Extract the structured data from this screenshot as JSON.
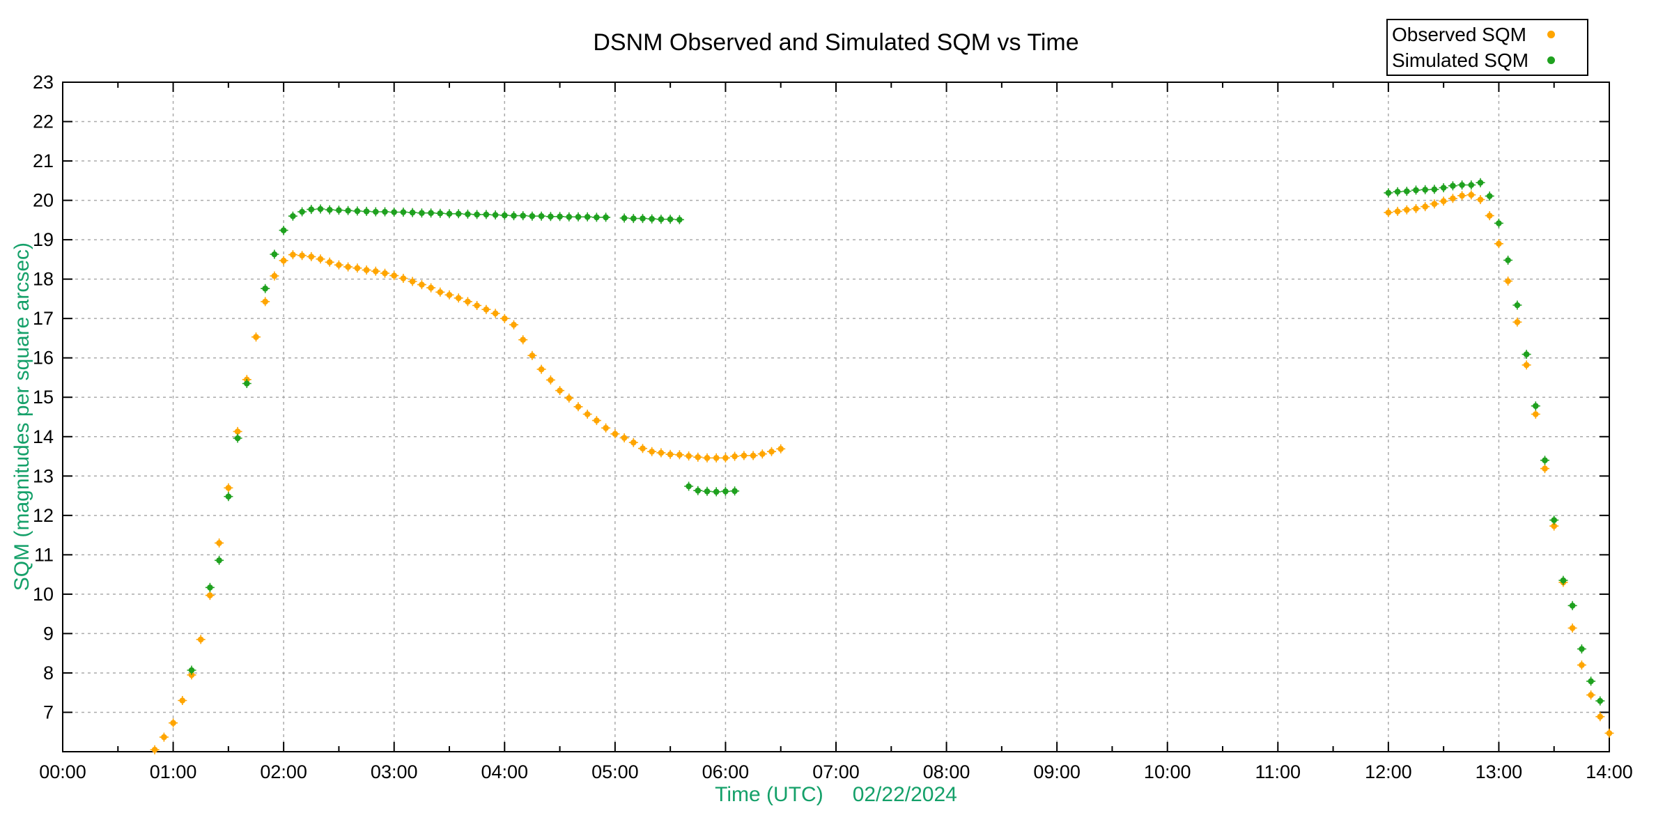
{
  "title": "DSNM Observed and Simulated SQM vs Time",
  "axes": {
    "x_label_time": "Time (UTC)",
    "x_label_date": "02/22/2024",
    "y_label": "SQM (magnitudes per square arcsec)",
    "x_ticks": [
      "00:00",
      "01:00",
      "02:00",
      "03:00",
      "04:00",
      "05:00",
      "06:00",
      "07:00",
      "08:00",
      "09:00",
      "10:00",
      "11:00",
      "12:00",
      "13:00",
      "14:00"
    ],
    "y_ticks": [
      7,
      8,
      9,
      10,
      11,
      12,
      13,
      14,
      15,
      16,
      17,
      18,
      19,
      20,
      21,
      22,
      23
    ]
  },
  "legend": {
    "items": [
      {
        "label": "Observed SQM",
        "color": "#FFA500"
      },
      {
        "label": "Simulated SQM",
        "color": "#1FA11F"
      }
    ]
  },
  "colors": {
    "observed": "#FFA500",
    "simulated": "#1FA11F",
    "axis_label_text": "#14A069",
    "grid": "#AAAAAA",
    "spine": "#000000",
    "tick_text": "#000000",
    "background": "#FFFFFF"
  },
  "chart_data": {
    "type": "scatter",
    "title": "DSNM Observed and Simulated SQM vs Time",
    "xlabel": "Time (UTC)   02/22/2024",
    "ylabel": "SQM (magnitudes per square arcsec)",
    "x_hours_range": [
      0,
      14
    ],
    "ylim": [
      6,
      23
    ],
    "grid": true,
    "legend_position": "top-right",
    "series": [
      {
        "name": "Observed SQM",
        "color": "#FFA500",
        "points": [
          [
            "00:50",
            6.05
          ],
          [
            "00:55",
            6.37
          ],
          [
            "01:00",
            6.73
          ],
          [
            "01:05",
            7.3
          ],
          [
            "01:10",
            7.95
          ],
          [
            "01:15",
            8.85
          ],
          [
            "01:20",
            9.97
          ],
          [
            "01:25",
            11.3
          ],
          [
            "01:30",
            12.7
          ],
          [
            "01:35",
            14.13
          ],
          [
            "01:40",
            15.45
          ],
          [
            "01:45",
            16.53
          ],
          [
            "01:50",
            17.43
          ],
          [
            "01:55",
            18.08
          ],
          [
            "02:00",
            18.47
          ],
          [
            "02:05",
            18.62
          ],
          [
            "02:10",
            18.6
          ],
          [
            "02:15",
            18.57
          ],
          [
            "02:20",
            18.51
          ],
          [
            "02:25",
            18.43
          ],
          [
            "02:30",
            18.36
          ],
          [
            "02:35",
            18.31
          ],
          [
            "02:40",
            18.28
          ],
          [
            "02:45",
            18.23
          ],
          [
            "02:50",
            18.2
          ],
          [
            "02:55",
            18.15
          ],
          [
            "03:00",
            18.09
          ],
          [
            "03:05",
            18.02
          ],
          [
            "03:10",
            17.94
          ],
          [
            "03:15",
            17.86
          ],
          [
            "03:20",
            17.78
          ],
          [
            "03:25",
            17.67
          ],
          [
            "03:30",
            17.6
          ],
          [
            "03:35",
            17.52
          ],
          [
            "03:40",
            17.43
          ],
          [
            "03:45",
            17.33
          ],
          [
            "03:50",
            17.23
          ],
          [
            "03:55",
            17.13
          ],
          [
            "04:00",
            17.0
          ],
          [
            "04:05",
            16.84
          ],
          [
            "04:10",
            16.46
          ],
          [
            "04:15",
            16.06
          ],
          [
            "04:20",
            15.71
          ],
          [
            "04:25",
            15.44
          ],
          [
            "04:30",
            15.17
          ],
          [
            "04:35",
            14.98
          ],
          [
            "04:40",
            14.76
          ],
          [
            "04:45",
            14.57
          ],
          [
            "04:50",
            14.41
          ],
          [
            "04:55",
            14.22
          ],
          [
            "05:00",
            14.07
          ],
          [
            "05:05",
            13.97
          ],
          [
            "05:10",
            13.85
          ],
          [
            "05:15",
            13.7
          ],
          [
            "05:20",
            13.62
          ],
          [
            "05:25",
            13.59
          ],
          [
            "05:30",
            13.55
          ],
          [
            "05:35",
            13.54
          ],
          [
            "05:40",
            13.51
          ],
          [
            "05:45",
            13.48
          ],
          [
            "05:50",
            13.46
          ],
          [
            "05:55",
            13.46
          ],
          [
            "06:00",
            13.46
          ],
          [
            "06:05",
            13.5
          ],
          [
            "06:10",
            13.52
          ],
          [
            "06:15",
            13.52
          ],
          [
            "06:20",
            13.56
          ],
          [
            "06:25",
            13.62
          ],
          [
            "06:30",
            13.69
          ],
          [
            "12:00",
            19.69
          ],
          [
            "12:05",
            19.72
          ],
          [
            "12:10",
            19.76
          ],
          [
            "12:15",
            19.79
          ],
          [
            "12:20",
            19.84
          ],
          [
            "12:25",
            19.91
          ],
          [
            "12:30",
            19.98
          ],
          [
            "12:35",
            20.05
          ],
          [
            "12:40",
            20.12
          ],
          [
            "12:45",
            20.14
          ],
          [
            "12:50",
            20.02
          ],
          [
            "12:55",
            19.61
          ],
          [
            "13:00",
            18.9
          ],
          [
            "13:05",
            17.95
          ],
          [
            "13:10",
            16.91
          ],
          [
            "13:15",
            15.82
          ],
          [
            "13:20",
            14.57
          ],
          [
            "13:25",
            13.19
          ],
          [
            "13:30",
            11.73
          ],
          [
            "13:35",
            10.3
          ],
          [
            "13:40",
            9.14
          ],
          [
            "13:45",
            8.2
          ],
          [
            "13:50",
            7.44
          ],
          [
            "13:55",
            6.89
          ],
          [
            "14:00",
            6.47
          ]
        ]
      },
      {
        "name": "Simulated SQM",
        "color": "#1FA11F",
        "points": [
          [
            "01:10",
            8.07
          ],
          [
            "01:20",
            10.17
          ],
          [
            "01:25",
            10.86
          ],
          [
            "01:30",
            12.48
          ],
          [
            "01:35",
            13.96
          ],
          [
            "01:40",
            15.35
          ],
          [
            "01:50",
            17.76
          ],
          [
            "01:55",
            18.63
          ],
          [
            "02:00",
            19.24
          ],
          [
            "02:05",
            19.6
          ],
          [
            "02:10",
            19.71
          ],
          [
            "02:15",
            19.77
          ],
          [
            "02:20",
            19.78
          ],
          [
            "02:25",
            19.76
          ],
          [
            "02:30",
            19.75
          ],
          [
            "02:35",
            19.74
          ],
          [
            "02:40",
            19.73
          ],
          [
            "02:45",
            19.72
          ],
          [
            "02:50",
            19.71
          ],
          [
            "02:55",
            19.71
          ],
          [
            "03:00",
            19.7
          ],
          [
            "03:05",
            19.7
          ],
          [
            "03:10",
            19.69
          ],
          [
            "03:15",
            19.68
          ],
          [
            "03:20",
            19.68
          ],
          [
            "03:25",
            19.67
          ],
          [
            "03:30",
            19.66
          ],
          [
            "03:35",
            19.66
          ],
          [
            "03:40",
            19.65
          ],
          [
            "03:45",
            19.64
          ],
          [
            "03:50",
            19.64
          ],
          [
            "03:55",
            19.63
          ],
          [
            "04:00",
            19.62
          ],
          [
            "04:05",
            19.61
          ],
          [
            "04:10",
            19.61
          ],
          [
            "04:15",
            19.6
          ],
          [
            "04:20",
            19.6
          ],
          [
            "04:25",
            19.59
          ],
          [
            "04:30",
            19.59
          ],
          [
            "04:35",
            19.58
          ],
          [
            "04:40",
            19.58
          ],
          [
            "04:45",
            19.58
          ],
          [
            "04:50",
            19.57
          ],
          [
            "04:55",
            19.57
          ],
          [
            "05:05",
            19.55
          ],
          [
            "05:10",
            19.54
          ],
          [
            "05:15",
            19.54
          ],
          [
            "05:20",
            19.53
          ],
          [
            "05:25",
            19.52
          ],
          [
            "05:30",
            19.52
          ],
          [
            "05:35",
            19.51
          ],
          [
            "05:40",
            12.74
          ],
          [
            "05:45",
            12.63
          ],
          [
            "05:50",
            12.61
          ],
          [
            "05:55",
            12.6
          ],
          [
            "06:00",
            12.61
          ],
          [
            "06:05",
            12.62
          ],
          [
            "12:00",
            20.19
          ],
          [
            "12:05",
            20.22
          ],
          [
            "12:10",
            20.23
          ],
          [
            "12:15",
            20.26
          ],
          [
            "12:20",
            20.27
          ],
          [
            "12:25",
            20.28
          ],
          [
            "12:30",
            20.32
          ],
          [
            "12:35",
            20.37
          ],
          [
            "12:40",
            20.39
          ],
          [
            "12:45",
            20.39
          ],
          [
            "12:50",
            20.45
          ],
          [
            "12:55",
            20.11
          ],
          [
            "13:00",
            19.42
          ],
          [
            "13:05",
            18.48
          ],
          [
            "13:10",
            17.34
          ],
          [
            "13:15",
            16.09
          ],
          [
            "13:20",
            14.78
          ],
          [
            "13:25",
            13.4
          ],
          [
            "13:30",
            11.88
          ],
          [
            "13:35",
            10.35
          ],
          [
            "13:40",
            9.71
          ],
          [
            "13:45",
            8.61
          ],
          [
            "13:50",
            7.79
          ],
          [
            "13:55",
            7.29
          ]
        ]
      }
    ]
  }
}
